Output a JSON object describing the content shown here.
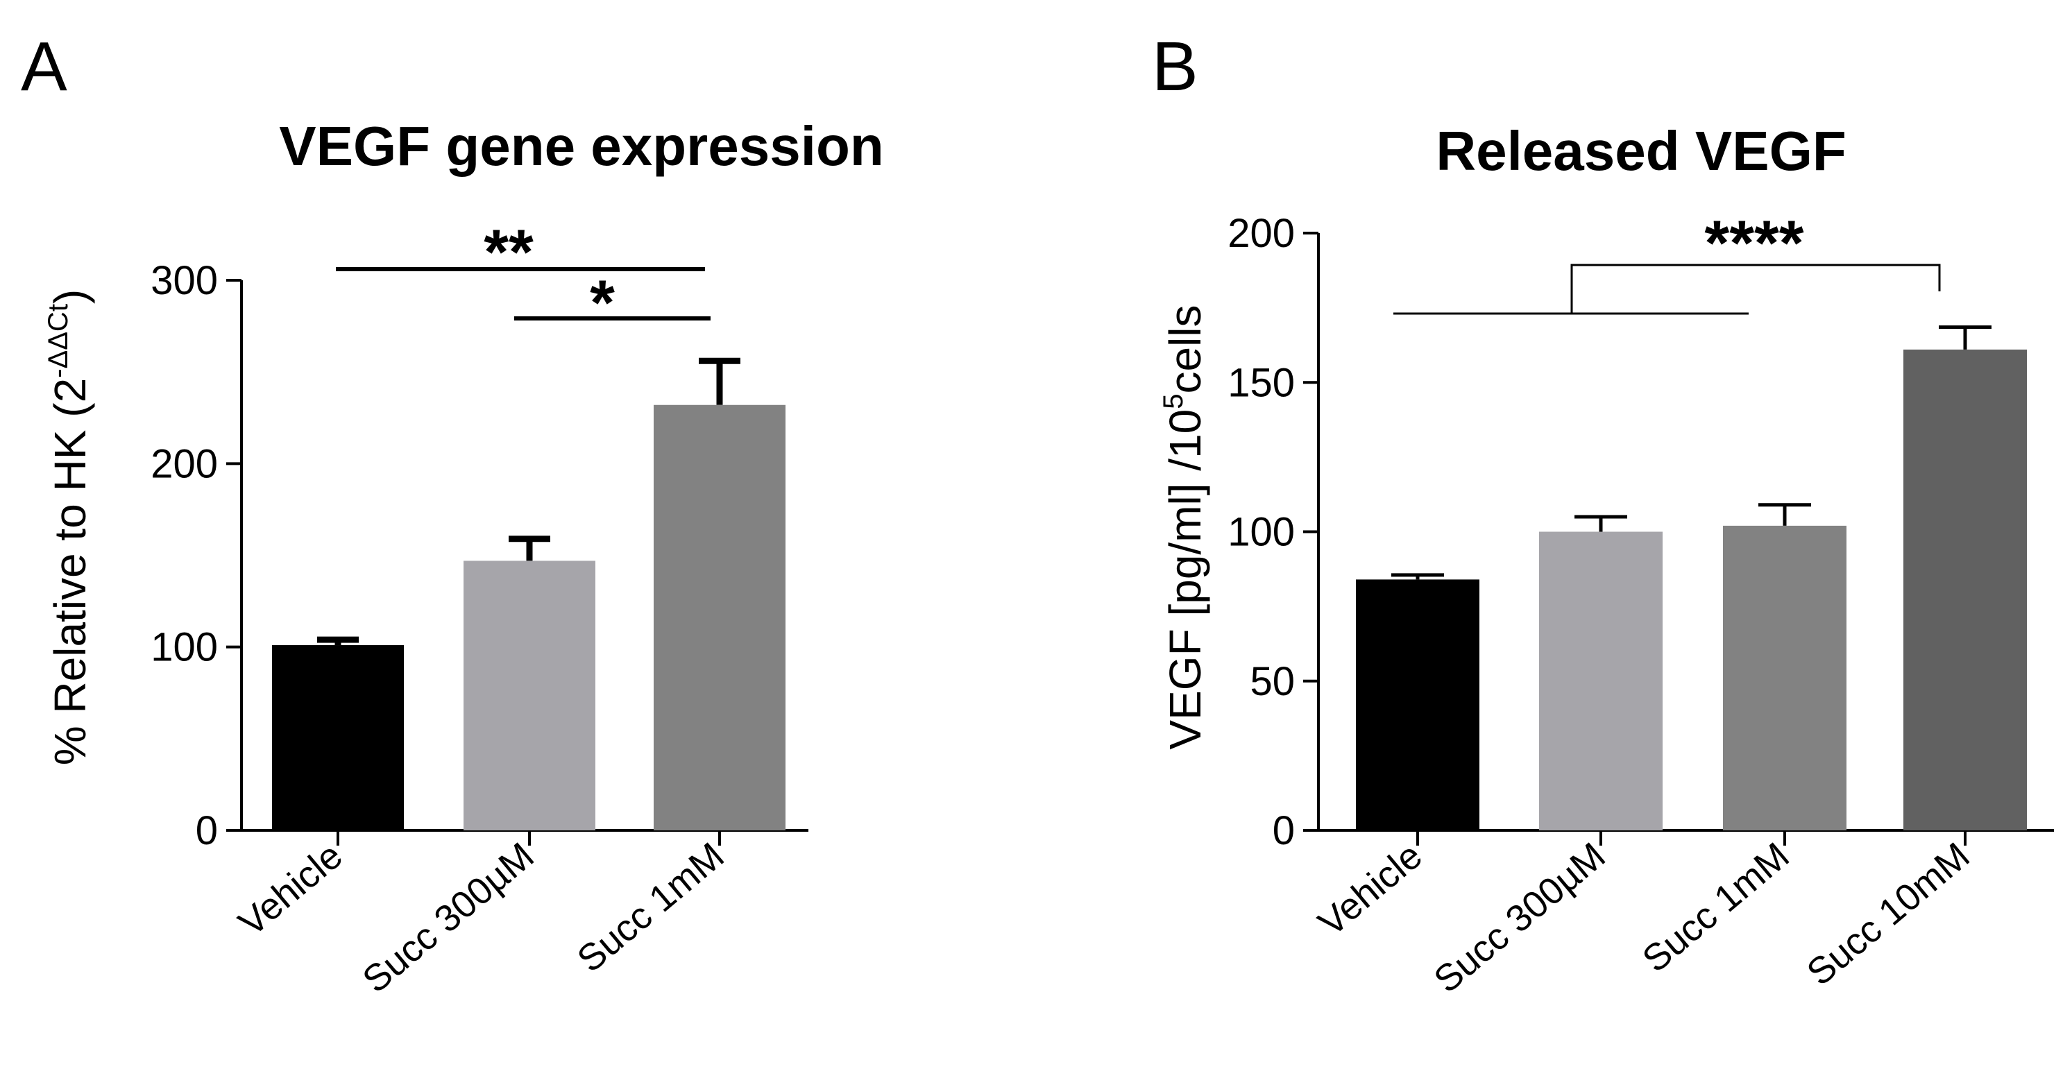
{
  "panels": {
    "a": {
      "letter": "A"
    },
    "b": {
      "letter": "B"
    }
  },
  "chart_data": [
    {
      "type": "bar",
      "title": "VEGF gene expression",
      "ylabel_main": "% Relative to HK (2",
      "ylabel_sup": "-ΔΔCt",
      "ylabel_close": ")",
      "categories": [
        "Vehicle",
        "Succ 300µM",
        "Succ 1mM"
      ],
      "values": [
        101,
        147,
        232
      ],
      "errors": [
        3,
        12,
        24
      ],
      "colors": [
        "#000000",
        "#a6a5aa",
        "#828282"
      ],
      "ylim": [
        0,
        300
      ],
      "yticks": [
        "0",
        "100",
        "200",
        "300"
      ],
      "significance": [
        {
          "label": "**",
          "from": 0,
          "to": 2
        },
        {
          "label": "*",
          "from": 1,
          "to": 2
        }
      ]
    },
    {
      "type": "bar",
      "title": "Released VEGF",
      "ylabel_main": "VEGF [pg/ml] /10",
      "ylabel_sup": "5",
      "ylabel_close": "cells",
      "categories": [
        "Vehicle",
        "Succ 300µM",
        "Succ 1mM",
        "Succ 10mM"
      ],
      "values": [
        84,
        100,
        102,
        161
      ],
      "errors": [
        1.5,
        5,
        7,
        7.5
      ],
      "colors": [
        "#000000",
        "#a6a5aa",
        "#828282",
        "#616161"
      ],
      "ylim": [
        0,
        200
      ],
      "yticks": [
        "0",
        "50",
        "100",
        "150",
        "200"
      ],
      "significance": [
        {
          "label": "****",
          "from": [
            0,
            1,
            2
          ],
          "to": 3
        }
      ]
    }
  ]
}
